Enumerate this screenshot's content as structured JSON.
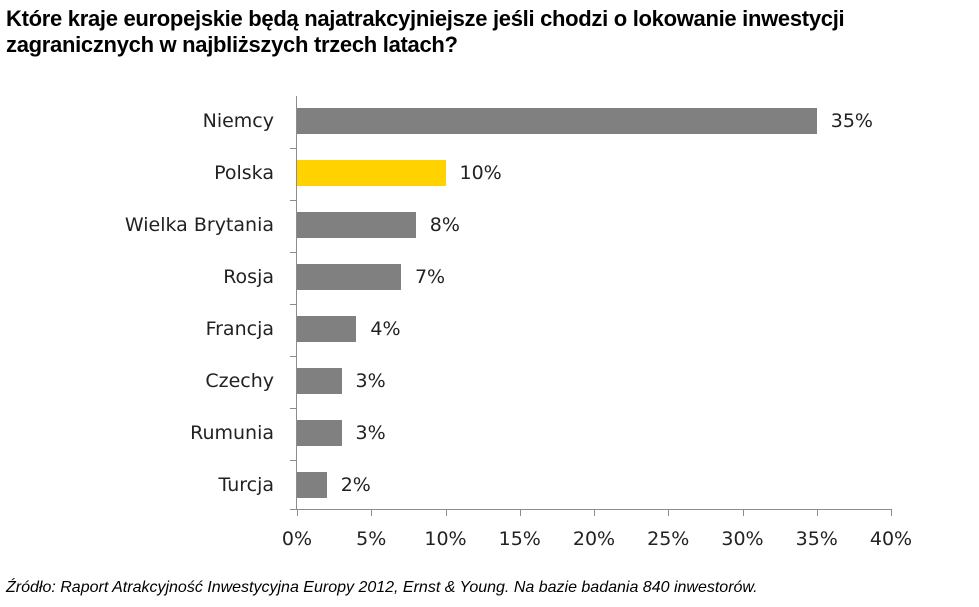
{
  "title": "Które kraje europejskie będą najatrakcyjniejsze jeśli chodzi o lokowanie inwestycji zagranicznych w najbliższych trzech latach?",
  "source": "Źródło: Raport Atrakcyjność Inwestycyjna Europy 2012, Ernst & Young. Na bazie badania 840 inwestorów.",
  "colors": {
    "default_bar": "#808080",
    "highlight_bar": "#FFD200",
    "axis": "#8c8c8c"
  },
  "chart_data": {
    "type": "bar",
    "orientation": "horizontal",
    "title": "Które kraje europejskie będą najatrakcyjniejsze jeśli chodzi o lokowanie inwestycji zagranicznych w najbliższych trzech latach?",
    "categories": [
      "Niemcy",
      "Polska",
      "Wielka Brytania",
      "Rosja",
      "Francja",
      "Czechy",
      "Rumunia",
      "Turcja"
    ],
    "values": [
      35,
      10,
      8,
      7,
      4,
      3,
      3,
      2
    ],
    "value_labels": [
      "35%",
      "10%",
      "8%",
      "7%",
      "4%",
      "3%",
      "3%",
      "2%"
    ],
    "highlight": "Polska",
    "xlabel": "",
    "ylabel": "",
    "xlim": [
      0,
      40
    ],
    "x_ticks": [
      "0%",
      "5%",
      "10%",
      "15%",
      "20%",
      "25%",
      "30%",
      "35%",
      "40%"
    ],
    "grid": false,
    "legend": null
  }
}
